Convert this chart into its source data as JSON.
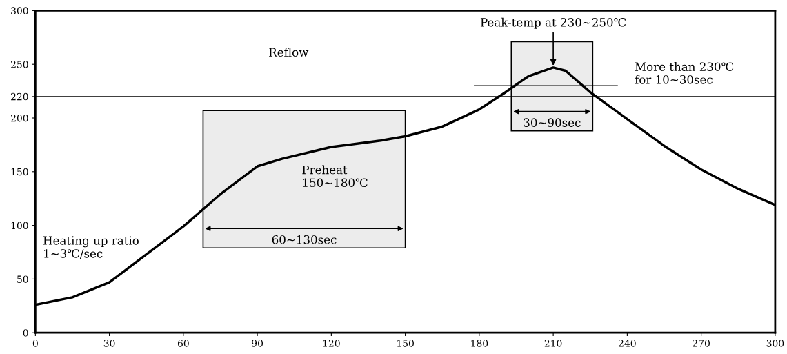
{
  "chart_data": {
    "type": "line",
    "x": [
      0,
      15,
      30,
      45,
      60,
      68,
      75,
      90,
      100,
      120,
      140,
      150,
      165,
      180,
      190,
      200,
      210,
      215,
      225,
      240,
      255,
      270,
      285,
      300
    ],
    "series": [
      {
        "color": "#000000",
        "values": [
          26,
          33,
          47,
          73,
          99,
          115,
          129,
          155,
          162,
          173,
          179,
          183,
          192,
          208,
          223,
          239,
          247,
          244,
          224,
          199,
          174,
          152,
          134,
          119
        ]
      },
      {
        "color": "#000000",
        "x": [
          178,
          236
        ],
        "values": [
          230,
          230
        ]
      }
    ],
    "xlim": [
      0,
      300
    ],
    "ylim": [
      0,
      300
    ],
    "xticks": [
      0,
      30,
      60,
      90,
      120,
      150,
      180,
      210,
      240,
      270,
      300
    ],
    "yticks": [
      0,
      50,
      100,
      150,
      200,
      220,
      250,
      300
    ],
    "grid": false,
    "marker": "none",
    "line_style": "solid",
    "ref_lines": [
      {
        "axis": "y",
        "value": 220,
        "color": "#000000"
      }
    ],
    "bands": [
      {
        "axis": "x",
        "from": 68,
        "to": 150,
        "label": "60~130sec"
      },
      {
        "axis": "x",
        "from": 193,
        "to": 226,
        "label": "30~90sec"
      }
    ],
    "annotations": [
      "Heating up ratio\n1~3℃/sec",
      "Preheat\n150~180℃",
      "Reflow",
      {
        "text": "Peak-temp at 230~250℃",
        "x": 210,
        "y": 247
      },
      "More than 230℃\nfor 10~30sec"
    ]
  }
}
